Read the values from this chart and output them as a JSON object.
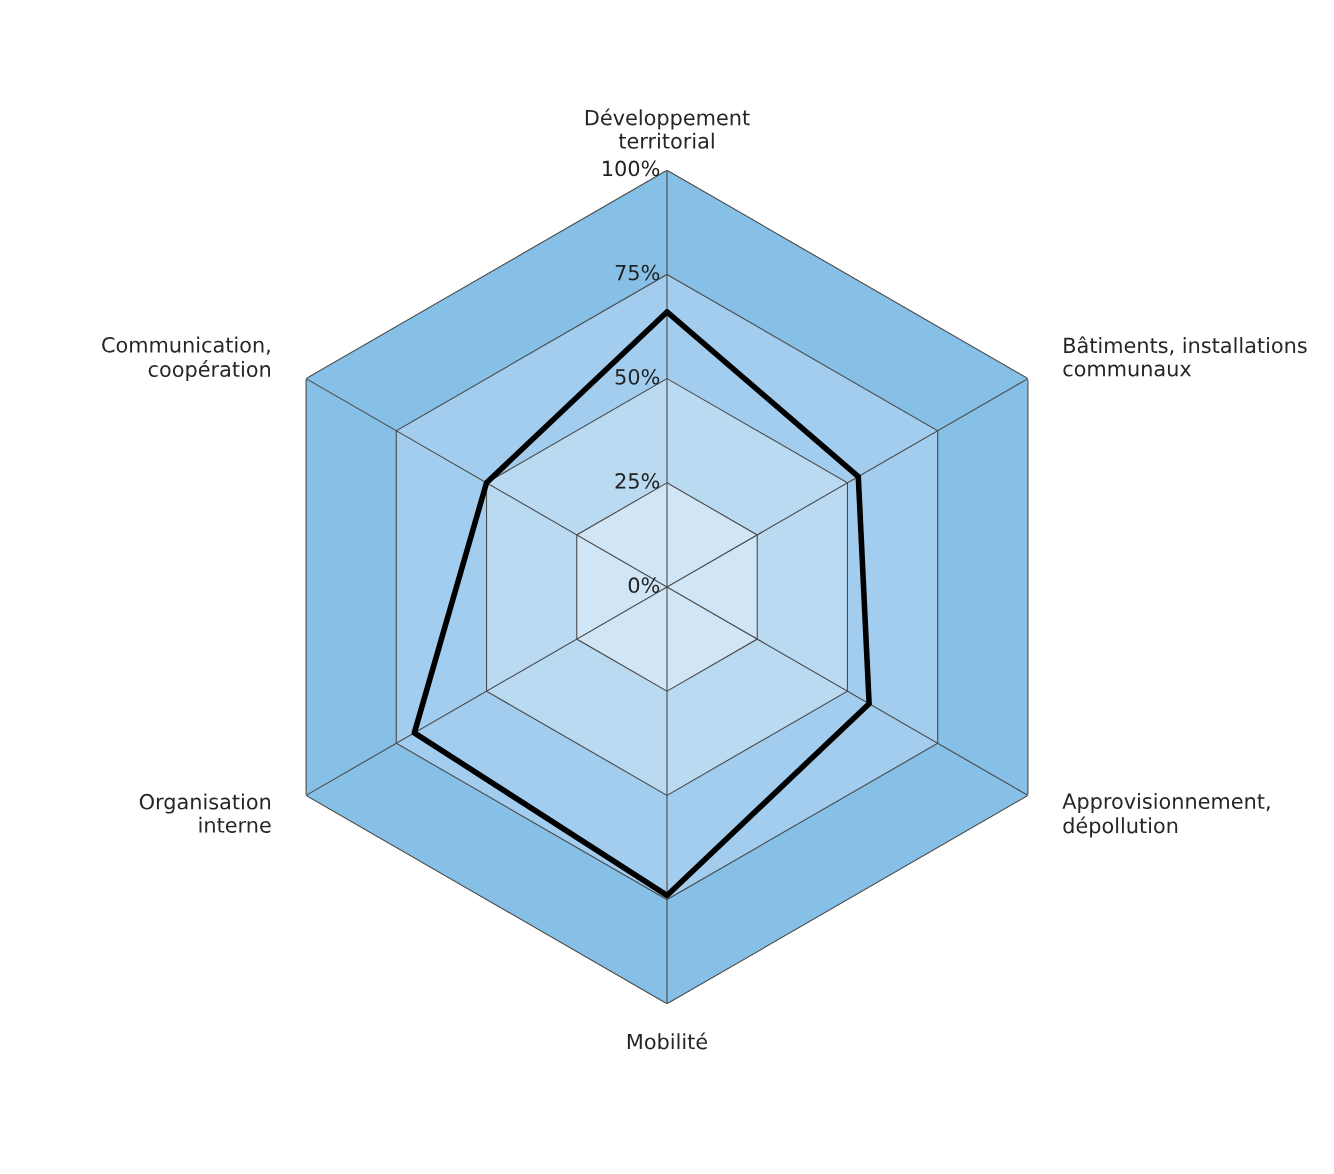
{
  "chart_data": {
    "type": "radar",
    "categories": [
      "Développement\nterritorial",
      "Bâtiments, installations\ncommunaux",
      "Approvisionnement,\ndépollution",
      "Mobilité",
      "Organisation\ninterne",
      "Communication,\ncoopération"
    ],
    "series": [
      {
        "color": "#000000",
        "values": [
          66,
          53,
          56,
          74,
          70,
          50
        ]
      }
    ],
    "ylim": [
      0,
      100
    ],
    "yticks": [
      {
        "value": 0,
        "label": "0%"
      },
      {
        "value": 25,
        "label": "25%"
      },
      {
        "value": 50,
        "label": "50%"
      },
      {
        "value": 75,
        "label": "75%"
      },
      {
        "value": 100,
        "label": "100%"
      }
    ],
    "grid": true,
    "marker": "none",
    "line_style": "solid"
  }
}
